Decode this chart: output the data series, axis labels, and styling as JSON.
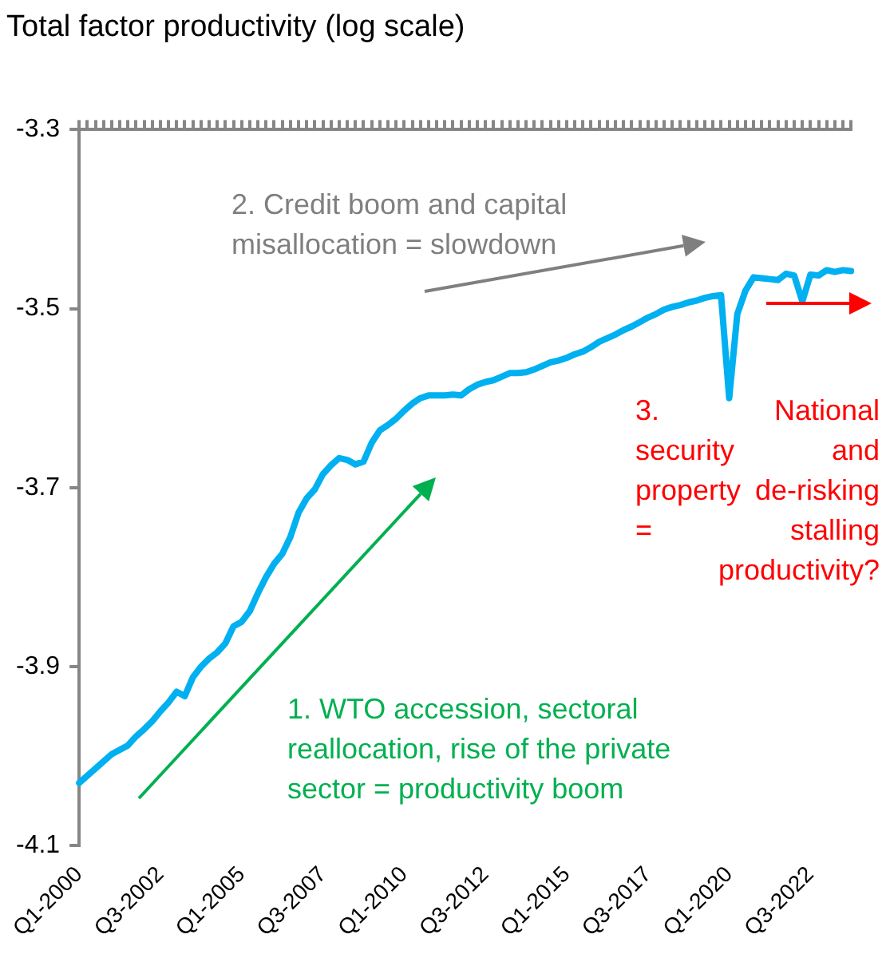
{
  "chart_data": {
    "type": "line",
    "title": "Total factor productivity (log scale)",
    "categories": [
      "Q1-2000",
      null,
      null,
      null,
      null,
      null,
      null,
      null,
      null,
      null,
      "Q3-2002",
      null,
      null,
      null,
      null,
      null,
      null,
      null,
      null,
      null,
      "Q1-2005",
      null,
      null,
      null,
      null,
      null,
      null,
      null,
      null,
      null,
      "Q3-2007",
      null,
      null,
      null,
      null,
      null,
      null,
      null,
      null,
      null,
      "Q1-2010",
      null,
      null,
      null,
      null,
      null,
      null,
      null,
      null,
      null,
      "Q3-2012",
      null,
      null,
      null,
      null,
      null,
      null,
      null,
      null,
      null,
      "Q1-2015",
      null,
      null,
      null,
      null,
      null,
      null,
      null,
      null,
      null,
      "Q3-2017",
      null,
      null,
      null,
      null,
      null,
      null,
      null,
      null,
      null,
      "Q1-2020",
      null,
      null,
      null,
      null,
      null,
      null,
      null,
      null,
      null,
      "Q3-2022",
      null,
      null,
      null,
      null,
      null
    ],
    "series": [
      {
        "color": "#00b0f0",
        "values": [
          -4.03,
          -4.022,
          -4.014,
          -4.006,
          -3.998,
          -3.993,
          -3.988,
          -3.978,
          -3.97,
          -3.961,
          -3.95,
          -3.94,
          -3.928,
          -3.933,
          -3.912,
          -3.9,
          -3.891,
          -3.884,
          -3.874,
          -3.855,
          -3.85,
          -3.838,
          -3.818,
          -3.8,
          -3.785,
          -3.774,
          -3.755,
          -3.728,
          -3.712,
          -3.702,
          -3.685,
          -3.675,
          -3.667,
          -3.669,
          -3.674,
          -3.671,
          -3.65,
          -3.636,
          -3.63,
          -3.623,
          -3.614,
          -3.606,
          -3.6,
          -3.597,
          -3.597,
          -3.597,
          -3.596,
          -3.597,
          -3.59,
          -3.585,
          -3.582,
          -3.58,
          -3.576,
          -3.572,
          -3.572,
          -3.571,
          -3.568,
          -3.564,
          -3.56,
          -3.558,
          -3.555,
          -3.551,
          -3.548,
          -3.543,
          -3.537,
          -3.533,
          -3.529,
          -3.524,
          -3.52,
          -3.515,
          -3.51,
          -3.506,
          -3.501,
          -3.498,
          -3.496,
          -3.493,
          -3.491,
          -3.488,
          -3.486,
          -3.485,
          -3.6,
          -3.506,
          -3.48,
          -3.465,
          -3.466,
          -3.467,
          -3.468,
          -3.461,
          -3.463,
          -3.492,
          -3.462,
          -3.463,
          -3.457,
          -3.459,
          -3.457,
          -3.458
        ]
      }
    ],
    "ylim": [
      -4.1,
      -3.3
    ],
    "yticks": [
      -3.3,
      -3.5,
      -3.7,
      -3.9,
      -4.1
    ],
    "annotations": [
      "2. Credit boom and capital misallocation = slowdown",
      "1. WTO accession, sectoral reallocation, rise of the private sector = productivity boom",
      "3. National security and property de-risking = stalling productivity?"
    ],
    "grid": false,
    "legend": false,
    "marker": "none",
    "line_style": "solid"
  }
}
